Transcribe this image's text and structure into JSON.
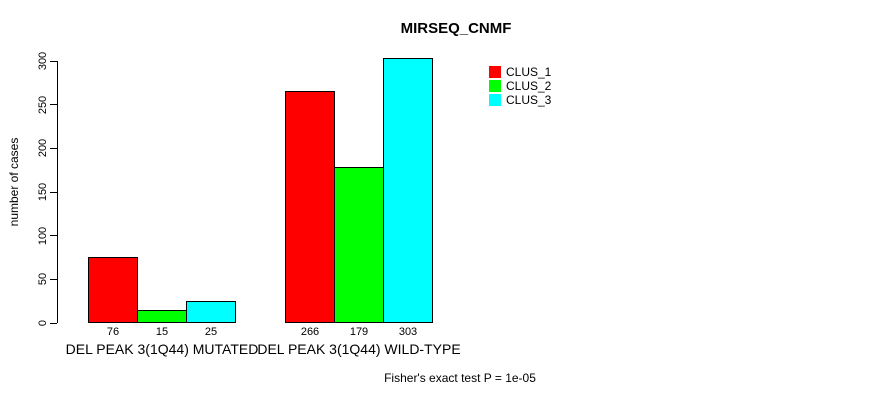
{
  "chart_data": {
    "type": "bar",
    "title": "MIRSEQ_CNMF",
    "xlabel": "",
    "ylabel": "number of cases",
    "categories": [
      "DEL PEAK 3(1Q44) MUTATED",
      "DEL PEAK 3(1Q44) WILD-TYPE"
    ],
    "series": [
      {
        "name": "CLUS_1",
        "color": "#ff0000",
        "values": [
          76,
          266
        ]
      },
      {
        "name": "CLUS_2",
        "color": "#00ff00",
        "values": [
          15,
          179
        ]
      },
      {
        "name": "CLUS_3",
        "color": "#00ffff",
        "values": [
          25,
          303
        ]
      }
    ],
    "yticks": [
      0,
      50,
      100,
      150,
      200,
      250,
      300
    ],
    "ylim": [
      0,
      300
    ],
    "grid": false,
    "bar_value_labels_shown": true,
    "legend_position": "top-right",
    "annotation": "Fisher's exact test P = 1e-05"
  }
}
